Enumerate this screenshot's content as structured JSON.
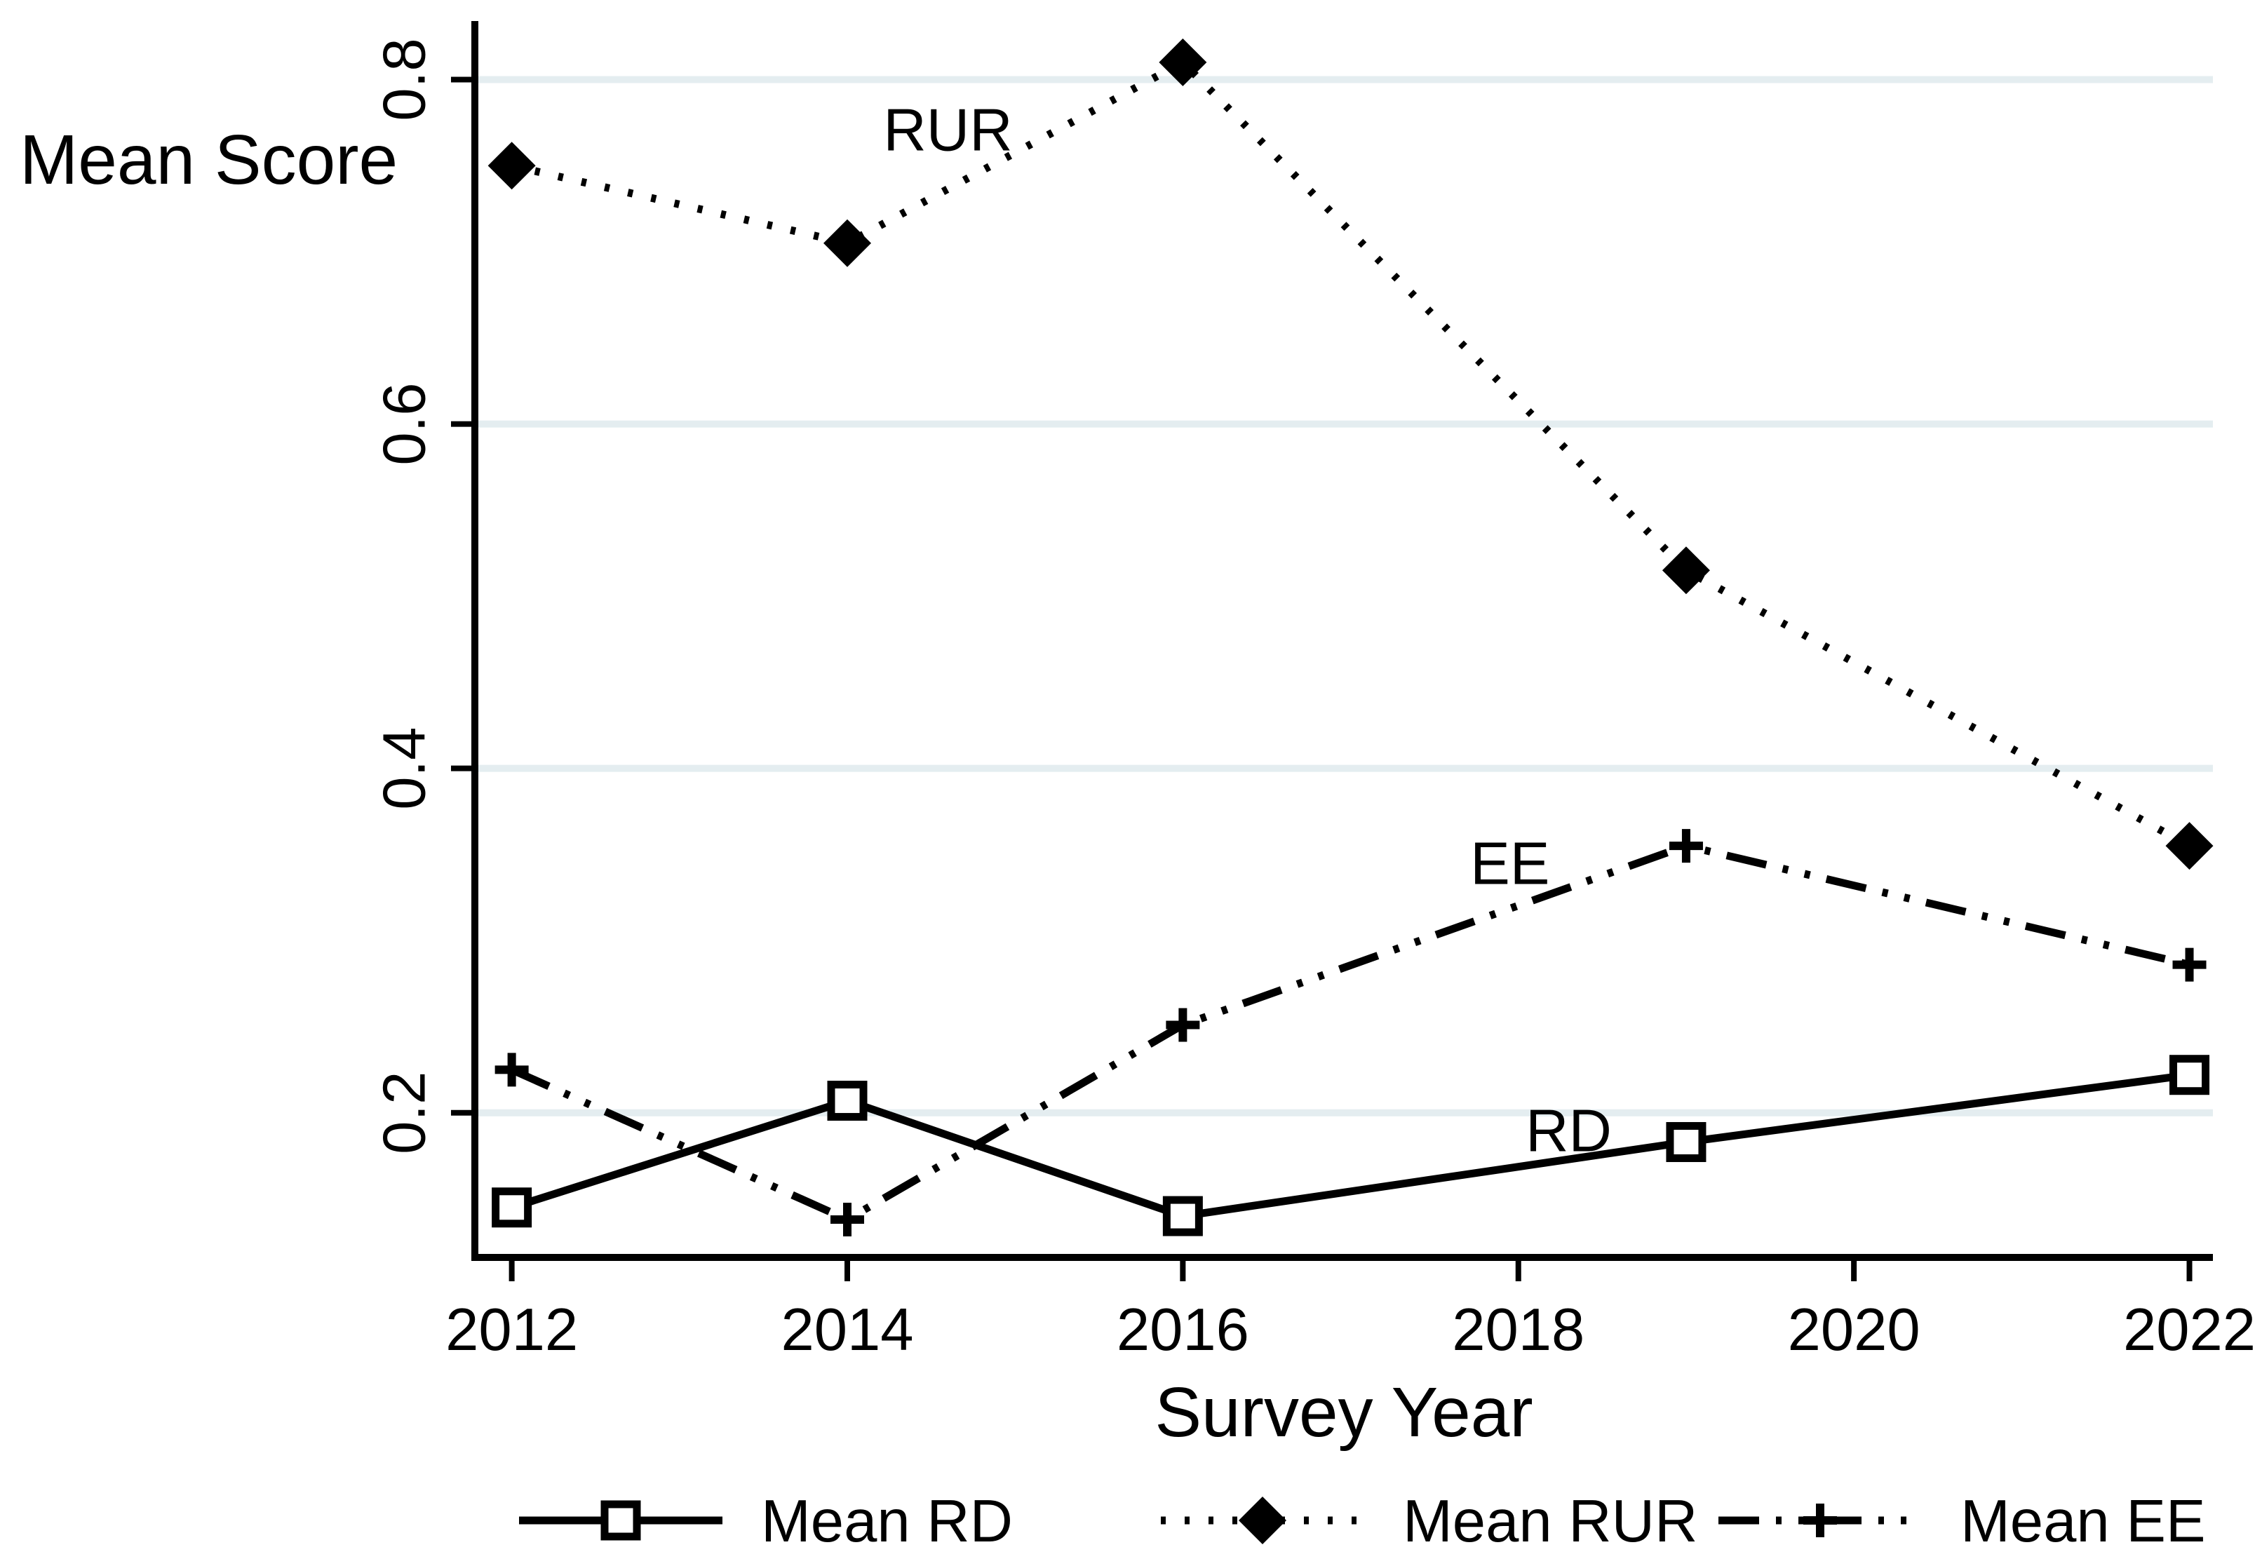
{
  "chart_data": {
    "type": "line",
    "title": "",
    "ylabel": "Mean Score",
    "xlabel": "Survey Year",
    "x": [
      2012,
      2014,
      2016,
      2019,
      2022
    ],
    "x_ticks": [
      2012,
      2014,
      2016,
      2018,
      2020,
      2022
    ],
    "x_tick_labels": [
      "2012",
      "2014",
      "2016",
      "2018",
      "2020",
      "2022"
    ],
    "y_ticks": [
      0.2,
      0.4,
      0.6,
      0.8
    ],
    "y_tick_labels": [
      "0.2",
      "0.4",
      "0.6",
      "0.8"
    ],
    "xlim": [
      2011.78,
      2022.14
    ],
    "ylim": [
      0.116,
      0.834
    ],
    "grid": "horizontal-only",
    "legend_position": "bottom",
    "background_color": "#ffffff",
    "gridline_color": "#e4edf0",
    "axis_color": "#000000",
    "series": [
      {
        "name": "Mean RD",
        "inplot_label": "RD",
        "line_style": "solid",
        "marker": "hollow-square",
        "color": "#000000",
        "values": [
          0.145,
          0.207,
          0.14,
          0.183,
          0.222
        ]
      },
      {
        "name": "Mean RUR",
        "inplot_label": "RUR",
        "line_style": "dotted",
        "marker": "filled-diamond",
        "color": "#000000",
        "values": [
          0.75,
          0.705,
          0.81,
          0.515,
          0.355
        ]
      },
      {
        "name": "Mean EE",
        "inplot_label": "EE",
        "line_style": "dash-dot-dot",
        "marker": "plus",
        "color": "#000000",
        "values": [
          0.225,
          0.138,
          0.251,
          0.355,
          0.286
        ]
      }
    ],
    "annotations": [
      {
        "text": "RUR",
        "x": 2014.6,
        "y": 0.771
      },
      {
        "text": "EE",
        "x": 2017.95,
        "y": 0.345
      },
      {
        "text": "RD",
        "x": 2018.3,
        "y": 0.19
      }
    ],
    "legend": {
      "items": [
        "Mean RD",
        "Mean RUR",
        "Mean EE"
      ]
    }
  }
}
